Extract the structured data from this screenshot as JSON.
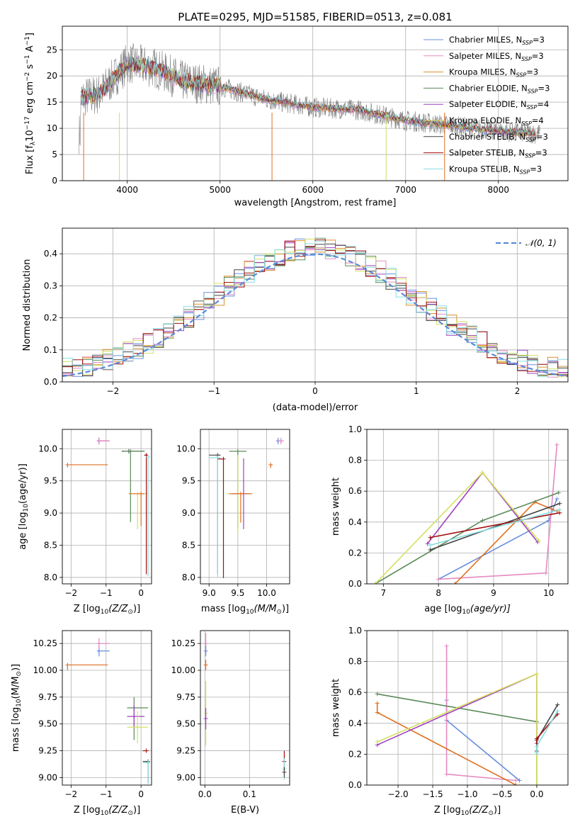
{
  "figure": {
    "title": "PLATE=0295, MJD=51585, FIBERID=0513, z=0.081"
  },
  "legend_entries": [
    {
      "label": "Chabrier MILES, N",
      "sub": "SSP",
      "tail": "=3",
      "color": "#6a8fdc"
    },
    {
      "label": "Salpeter MILES, N",
      "sub": "SSP",
      "tail": "=3",
      "color": "#e58ac0"
    },
    {
      "label": "Kroupa MILES, N",
      "sub": "SSP",
      "tail": "=3",
      "color": "#d9912a"
    },
    {
      "label": "Chabrier ELODIE, N",
      "sub": "SSP",
      "tail": "=3",
      "color": "#5a8a5a"
    },
    {
      "label": "Salpeter ELODIE, N",
      "sub": "SSP",
      "tail": "=4",
      "color": "#a040c0"
    },
    {
      "label": "Kroupa ELODIE, N",
      "sub": "SSP",
      "tail": "=4",
      "color": "#d4e060"
    },
    {
      "label": "Chabrier STELIB, N",
      "sub": "SSP",
      "tail": "=3",
      "color": "#444444"
    },
    {
      "label": "Salpeter STELIB, N",
      "sub": "SSP",
      "tail": "=3",
      "color": "#a01010"
    },
    {
      "label": "Kroupa STELIB, N",
      "sub": "SSP",
      "tail": "=3",
      "color": "#88dde0"
    }
  ],
  "chart_data": [
    {
      "id": "spectrum",
      "type": "line",
      "xlabel": "wavelength [Angstrom, rest frame]",
      "ylabel": "Flux [f",
      "ylabel_sub": "λ",
      "ylabel_tail": "10",
      "ylabel_sup": "−17",
      "ylabel_tail2": " erg cm",
      "ylabel_sup2": "−2",
      "ylabel_tail3": " s",
      "ylabel_sup3": "−1",
      "ylabel_tail4": " A",
      "ylabel_sup4": "−1",
      "ylabel_end": "]",
      "xlim": [
        3300,
        8750
      ],
      "ylim": [
        0,
        29.5
      ],
      "xticks": [
        4000,
        5000,
        6000,
        7000,
        8000
      ],
      "yticks": [
        0,
        5,
        10,
        15,
        20,
        25
      ],
      "observed_color": "#808080",
      "model_anchor": {
        "x": [
          3500,
          3700,
          4000,
          4300,
          4600,
          5000,
          5500,
          6000,
          6500,
          7000,
          7500,
          8000,
          8400
        ],
        "y": [
          15.8,
          16.5,
          22.5,
          21.5,
          19.0,
          18.0,
          15.5,
          14.0,
          13.5,
          11.5,
          10.5,
          9.5,
          9.0
        ]
      }
    },
    {
      "id": "residuals",
      "type": "histogram",
      "xlabel": "(data-model)/error",
      "ylabel": "Normed distribution",
      "xlim": [
        -2.5,
        2.5
      ],
      "ylim": [
        0,
        0.48
      ],
      "xticks": [
        -2,
        -1,
        0,
        1,
        2
      ],
      "yticks": [
        0.0,
        0.1,
        0.2,
        0.3,
        0.4
      ],
      "legend_label": "𝒩(0, 1)",
      "gaussian_color": "#5b8ad8",
      "bin_width": 0.1
    },
    {
      "id": "age_vs_Z",
      "type": "errorbar",
      "xlabel": "Z [log",
      "xlabel_sub": "10",
      "xlabel_tail": "(Z/Z",
      "xlabel_sub2": "⊙",
      "xlabel_end": ")]",
      "ylabel": "age  [log",
      "ylabel_sub": "10",
      "ylabel_tail": "(age/yr)]",
      "xlim": [
        -2.25,
        0.3
      ],
      "ylim": [
        7.9,
        10.3
      ],
      "xticks": [
        -2,
        -1,
        0
      ],
      "yticks": [
        8.0,
        8.5,
        9.0,
        9.5,
        10.0
      ],
      "points": [
        {
          "x": -1.2,
          "y": 10.12,
          "xerr": [
            0.05,
            0.25
          ],
          "yerr": [
            0.05,
            0.05
          ],
          "color": "#6a8fdc"
        },
        {
          "x": -1.2,
          "y": 10.12,
          "xerr": [
            0.05,
            0.3
          ],
          "yerr": [
            0.05,
            0.05
          ],
          "color": "#a040c0"
        },
        {
          "x": -1.2,
          "y": 10.12,
          "xerr": [
            0.03,
            0.3
          ],
          "yerr": [
            0.05,
            0.05
          ],
          "color": "#e58ac0"
        },
        {
          "x": -2.1,
          "y": 9.75,
          "xerr": [
            0.0,
            1.15
          ],
          "yerr": [
            0.04,
            0.0
          ],
          "color": "#e07020"
        },
        {
          "x": -0.35,
          "y": 9.96,
          "xerr": [
            0.2,
            0.45
          ],
          "yerr": [
            0.0,
            0.0
          ],
          "color": "#444444"
        },
        {
          "x": -0.3,
          "y": 9.96,
          "xerr": [
            0.2,
            0.4
          ],
          "yerr": [
            1.1,
            0.0
          ],
          "color": "#5a8a5a"
        },
        {
          "x": -0.1,
          "y": 9.3,
          "xerr": [
            0.25,
            0.3
          ],
          "yerr": [
            0.55,
            0.0
          ],
          "color": "#d4e060"
        },
        {
          "x": 0.0,
          "y": 9.3,
          "xerr": [
            0.35,
            0.1
          ],
          "yerr": [
            0.5,
            0.0
          ],
          "color": "#e07020"
        },
        {
          "x": 0.15,
          "y": 9.9,
          "xerr": [
            0.05,
            0.05
          ],
          "yerr": [
            1.85,
            0.0
          ],
          "color": "#a01010"
        },
        {
          "x": 0.2,
          "y": 9.87,
          "xerr": [
            0.05,
            0.05
          ],
          "yerr": [
            1.85,
            0.0
          ],
          "color": "#88dde0"
        }
      ]
    },
    {
      "id": "age_vs_mass",
      "type": "errorbar",
      "xlabel": "mass [log",
      "xlabel_sub": "10",
      "xlabel_tail": "(M/M",
      "xlabel_sub2": "⊙",
      "xlabel_end": ")]",
      "xlim": [
        8.85,
        10.4
      ],
      "ylim": [
        7.9,
        10.3
      ],
      "xticks": [
        9.0,
        9.5,
        10.0
      ],
      "yticks": [
        8.0,
        8.5,
        9.0,
        9.5,
        10.0
      ],
      "points": [
        {
          "x": 9.15,
          "y": 9.9,
          "xerr": [
            0.15,
            0.05
          ],
          "yerr": [
            1.85,
            0.0
          ],
          "color": "#444444"
        },
        {
          "x": 9.15,
          "y": 9.86,
          "xerr": [
            0.15,
            0.05
          ],
          "yerr": [
            1.85,
            0.0
          ],
          "color": "#88dde0"
        },
        {
          "x": 9.25,
          "y": 9.84,
          "xerr": [
            0.1,
            0.0
          ],
          "yerr": [
            1.85,
            0.0
          ],
          "color": "#a01010"
        },
        {
          "x": 9.5,
          "y": 9.96,
          "xerr": [
            0.15,
            0.15
          ],
          "yerr": [
            1.2,
            0.0
          ],
          "color": "#5a8a5a"
        },
        {
          "x": 9.5,
          "y": 9.3,
          "xerr": [
            0.2,
            0.25
          ],
          "yerr": [
            0.6,
            0.6
          ],
          "color": "#d4e060"
        },
        {
          "x": 9.6,
          "y": 9.3,
          "xerr": [
            0.2,
            0.1
          ],
          "yerr": [
            0.55,
            0.55
          ],
          "color": "#a040c0"
        },
        {
          "x": 9.55,
          "y": 9.3,
          "xerr": [
            0.2,
            0.2
          ],
          "yerr": [
            0.45,
            0.0
          ],
          "color": "#e07020"
        },
        {
          "x": 10.07,
          "y": 9.75,
          "xerr": [
            0.0,
            0.03
          ],
          "yerr": [
            0.05,
            0.0
          ],
          "color": "#e07020"
        },
        {
          "x": 10.2,
          "y": 10.12,
          "xerr": [
            0.03,
            0.03
          ],
          "yerr": [
            0.05,
            0.05
          ],
          "color": "#6a8fdc"
        },
        {
          "x": 10.25,
          "y": 10.12,
          "xerr": [
            0.05,
            0.05
          ],
          "yerr": [
            0.05,
            0.05
          ],
          "color": "#e58ac0"
        }
      ]
    },
    {
      "id": "weight_vs_age",
      "type": "line",
      "xlabel": "age  [log",
      "xlabel_sub": "10",
      "xlabel_tail": "(age/yr)]",
      "ylabel": "mass weight",
      "xlim": [
        6.7,
        10.35
      ],
      "ylim": [
        0,
        1.0
      ],
      "xticks": [
        7,
        8,
        9,
        10
      ],
      "yticks": [
        0.0,
        0.2,
        0.4,
        0.6,
        0.8,
        1.0
      ],
      "series": [
        {
          "color": "#6a8fdc",
          "x": [
            8.0,
            10.0,
            10.15
          ],
          "y": [
            0.03,
            0.41,
            0.55
          ]
        },
        {
          "color": "#e58ac0",
          "x": [
            8.0,
            9.95,
            10.15
          ],
          "y": [
            0.03,
            0.07,
            0.9
          ]
        },
        {
          "color": "#e07020",
          "x": [
            8.3,
            9.75,
            10.15
          ],
          "y": [
            0.0,
            0.53,
            0.47
          ]
        },
        {
          "color": "#5a8a5a",
          "x": [
            6.85,
            8.8,
            10.18
          ],
          "y": [
            0.0,
            0.41,
            0.59
          ]
        },
        {
          "color": "#a040c0",
          "x": [
            7.8,
            8.8,
            9.8
          ],
          "y": [
            0.26,
            0.72,
            0.27
          ]
        },
        {
          "color": "#d4e060",
          "x": [
            6.85,
            8.8,
            9.82
          ],
          "y": [
            0.0,
            0.72,
            0.28
          ]
        },
        {
          "color": "#444444",
          "x": [
            7.85,
            10.2
          ],
          "y": [
            0.22,
            0.52
          ]
        },
        {
          "color": "#a01010",
          "x": [
            7.85,
            10.2
          ],
          "y": [
            0.3,
            0.46
          ]
        },
        {
          "color": "#88dde0",
          "x": [
            7.85,
            10.2
          ],
          "y": [
            0.25,
            0.48
          ]
        }
      ]
    },
    {
      "id": "mass_vs_Z",
      "type": "errorbar",
      "xlabel": "Z [log",
      "xlabel_sub": "10",
      "xlabel_tail": "(Z/Z",
      "xlabel_sub2": "⊙",
      "xlabel_end": ")]",
      "ylabel": "mass [log",
      "ylabel_sub": "10",
      "ylabel_tail": "(M/M",
      "ylabel_sub2": "⊙",
      "ylabel_end": ")]",
      "xlim": [
        -2.25,
        0.3
      ],
      "ylim": [
        8.93,
        10.37
      ],
      "xticks": [
        -2,
        -1,
        0
      ],
      "yticks": [
        9.0,
        9.25,
        9.5,
        9.75,
        10.0,
        10.25
      ],
      "points": [
        {
          "x": -1.2,
          "y": 10.18,
          "xerr": [
            0.05,
            0.3
          ],
          "yerr": [
            0.05,
            0.05
          ],
          "color": "#6a8fdc"
        },
        {
          "x": -1.2,
          "y": 10.25,
          "xerr": [
            0.05,
            0.3
          ],
          "yerr": [
            0.05,
            0.05
          ],
          "color": "#e58ac0"
        },
        {
          "x": -2.1,
          "y": 10.05,
          "xerr": [
            0.0,
            1.15
          ],
          "yerr": [
            0.05,
            0.0
          ],
          "color": "#e07020"
        },
        {
          "x": -0.2,
          "y": 9.65,
          "xerr": [
            0.2,
            0.4
          ],
          "yerr": [
            0.3,
            0.1
          ],
          "color": "#5a8a5a"
        },
        {
          "x": -0.2,
          "y": 9.57,
          "xerr": [
            0.2,
            0.3
          ],
          "yerr": [
            0.1,
            0.1
          ],
          "color": "#a040c0"
        },
        {
          "x": -0.1,
          "y": 9.47,
          "xerr": [
            0.3,
            0.3
          ],
          "yerr": [
            0.15,
            0.15
          ],
          "color": "#d4e060"
        },
        {
          "x": 0.15,
          "y": 9.25,
          "xerr": [
            0.1,
            0.05
          ],
          "yerr": [
            0.0,
            0.0
          ],
          "color": "#a01010"
        },
        {
          "x": 0.2,
          "y": 9.15,
          "xerr": [
            0.15,
            0.0
          ],
          "yerr": [
            0.2,
            0.0
          ],
          "color": "#444444"
        },
        {
          "x": 0.2,
          "y": 9.14,
          "xerr": [
            0.15,
            0.0
          ],
          "yerr": [
            0.2,
            0.0
          ],
          "color": "#88dde0"
        }
      ]
    },
    {
      "id": "mass_vs_ebv",
      "type": "errorbar",
      "xlabel": "E(B-V)",
      "xlim": [
        -0.01,
        0.19
      ],
      "ylim": [
        8.93,
        10.37
      ],
      "xticks": [
        0.0,
        0.1
      ],
      "yticks": [
        9.0,
        9.25,
        9.5,
        9.75,
        10.0,
        10.25
      ],
      "points": [
        {
          "x": 0.002,
          "y": 10.25,
          "xerr": [
            0,
            0
          ],
          "yerr": [
            0.1,
            0.1
          ],
          "color": "#e58ac0"
        },
        {
          "x": 0.002,
          "y": 10.18,
          "xerr": [
            0,
            0
          ],
          "yerr": [
            0.05,
            0.05
          ],
          "color": "#6a8fdc"
        },
        {
          "x": 0.002,
          "y": 10.05,
          "xerr": [
            0,
            0
          ],
          "yerr": [
            0.05,
            0.05
          ],
          "color": "#e07020"
        },
        {
          "x": 0.002,
          "y": 9.6,
          "xerr": [
            0,
            0
          ],
          "yerr": [
            0.3,
            0.3
          ],
          "color": "#d4e060"
        },
        {
          "x": 0.002,
          "y": 9.55,
          "xerr": [
            0,
            0
          ],
          "yerr": [
            0.1,
            0.1
          ],
          "color": "#a040c0"
        },
        {
          "x": 0.178,
          "y": 9.15,
          "xerr": [
            0,
            0
          ],
          "yerr": [
            0.1,
            0.1
          ],
          "color": "#a01010"
        },
        {
          "x": 0.178,
          "y": 9.08,
          "xerr": [
            0,
            0
          ],
          "yerr": [
            0.1,
            0.1
          ],
          "color": "#88dde0"
        },
        {
          "x": 0.178,
          "y": 9.05,
          "xerr": [
            0,
            0
          ],
          "yerr": [
            0.05,
            0.05
          ],
          "color": "#444444"
        }
      ]
    },
    {
      "id": "weight_vs_Z",
      "type": "line",
      "xlabel": "Z [log",
      "xlabel_sub": "10",
      "xlabel_tail": "(Z/Z",
      "xlabel_sub2": "⊙",
      "xlabel_end": ")]",
      "ylabel": "mass weight",
      "xlim": [
        -2.45,
        0.45
      ],
      "ylim": [
        0,
        1.0
      ],
      "xticks": [
        -2.0,
        -1.5,
        -1.0,
        -0.5,
        0.0
      ],
      "yticks": [
        0.0,
        0.2,
        0.4,
        0.6,
        0.8,
        1.0
      ],
      "series": [
        {
          "color": "#6a8fdc",
          "x": [
            -1.3,
            -1.3,
            -0.25
          ],
          "y": [
            0.55,
            0.42,
            0.03
          ]
        },
        {
          "color": "#e58ac0",
          "x": [
            -1.3,
            -1.3,
            -0.3
          ],
          "y": [
            0.9,
            0.07,
            0.03
          ]
        },
        {
          "color": "#e07020",
          "x": [
            -2.3,
            -2.3,
            -0.3
          ],
          "y": [
            0.53,
            0.47,
            0.0
          ]
        },
        {
          "color": "#5a8a5a",
          "x": [
            -2.3,
            0.0,
            0.0
          ],
          "y": [
            0.59,
            0.41,
            0.0
          ]
        },
        {
          "color": "#a040c0",
          "x": [
            -2.3,
            0.0,
            0.0
          ],
          "y": [
            0.26,
            0.72,
            0.27
          ]
        },
        {
          "color": "#d4e060",
          "x": [
            -2.3,
            0.0,
            0.0
          ],
          "y": [
            0.28,
            0.72,
            0.0
          ]
        },
        {
          "color": "#444444",
          "x": [
            0.0,
            0.0,
            0.3
          ],
          "y": [
            0.22,
            0.29,
            0.52
          ]
        },
        {
          "color": "#a01010",
          "x": [
            0.0,
            0.0,
            0.3
          ],
          "y": [
            0.25,
            0.3,
            0.46
          ]
        },
        {
          "color": "#88dde0",
          "x": [
            0.0,
            0.0,
            0.3
          ],
          "y": [
            0.21,
            0.25,
            0.48
          ]
        }
      ]
    }
  ]
}
